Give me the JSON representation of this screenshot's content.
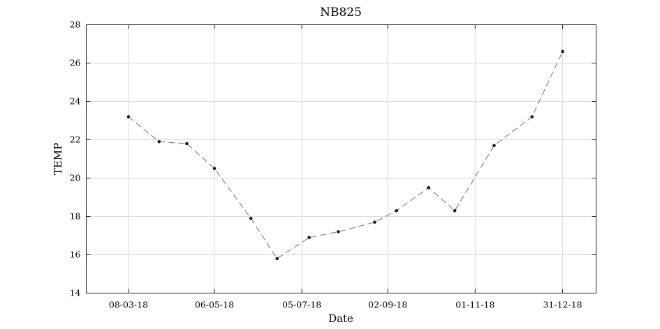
{
  "chart_data": {
    "type": "line",
    "title": "NB825",
    "xlabel": "Date",
    "ylabel": "TEMP",
    "ylim": [
      14,
      28
    ],
    "xlim": [
      "2018-02-07",
      "2019-01-23"
    ],
    "yticks": [
      14,
      16,
      18,
      20,
      22,
      24,
      26,
      28
    ],
    "xticks": [
      {
        "date": "2018-03-08",
        "label": "08-03-18"
      },
      {
        "date": "2018-05-06",
        "label": "06-05-18"
      },
      {
        "date": "2018-07-05",
        "label": "05-07-18"
      },
      {
        "date": "2018-09-02",
        "label": "02-09-18"
      },
      {
        "date": "2018-11-01",
        "label": "01-11-18"
      },
      {
        "date": "2018-12-31",
        "label": "31-12-18"
      }
    ],
    "grid": true,
    "line_style": "dashed",
    "colors": {
      "line": "#7f7f7f",
      "marker": "#1a1a1a"
    },
    "series": [
      {
        "x": [
          "2018-03-08",
          "2018-03-29",
          "2018-04-17",
          "2018-05-06",
          "2018-05-31",
          "2018-06-18",
          "2018-07-10",
          "2018-07-30",
          "2018-08-24",
          "2018-09-08",
          "2018-09-30",
          "2018-10-18",
          "2018-11-14",
          "2018-12-10",
          "2018-12-31"
        ],
        "y": [
          23.2,
          21.9,
          21.8,
          20.5,
          17.9,
          15.8,
          16.9,
          17.2,
          17.7,
          18.3,
          19.5,
          18.3,
          21.7,
          23.2,
          26.6
        ]
      }
    ]
  }
}
